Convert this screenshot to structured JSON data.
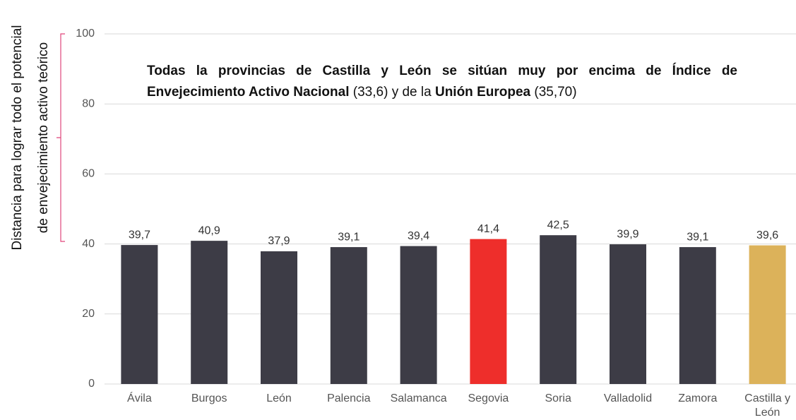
{
  "chart_data": {
    "type": "bar",
    "y_label": [
      "Distancia para lograr todo el potencial",
      "de envejecimiento activo teórico"
    ],
    "annotation": [
      {
        "text": "Todas la provincias de Castilla y León se sitúan muy por encima de Índice de Envejecimiento Activo Nacional",
        "bold": true
      },
      {
        "text": "(33,6) y de la",
        "bold": false
      },
      {
        "text": "Unión Europea",
        "bold": true
      },
      {
        "text": "(35,70)",
        "bold": false
      }
    ],
    "categories": [
      "Ávila",
      "Burgos",
      "León",
      "Palencia",
      "Salamanca",
      "Segovia",
      "Soria",
      "Valladolid",
      "Zamora",
      "Castilla y León"
    ],
    "values": [
      39.7,
      40.9,
      37.9,
      39.1,
      39.4,
      41.4,
      42.5,
      39.9,
      39.1,
      39.6
    ],
    "value_labels": [
      "39,7",
      "40,9",
      "37,9",
      "39,1",
      "39,4",
      "41,4",
      "42,5",
      "39,9",
      "39,1",
      "39,6"
    ],
    "colors": [
      "#3d3c46",
      "#3d3c46",
      "#3d3c46",
      "#3d3c46",
      "#3d3c46",
      "#ee2e2b",
      "#3d3c46",
      "#3d3c46",
      "#3d3c46",
      "#dcb25a"
    ],
    "ylim": [
      0,
      100
    ],
    "yticks": [
      0,
      20,
      40,
      60,
      80,
      100
    ],
    "grid": true
  }
}
